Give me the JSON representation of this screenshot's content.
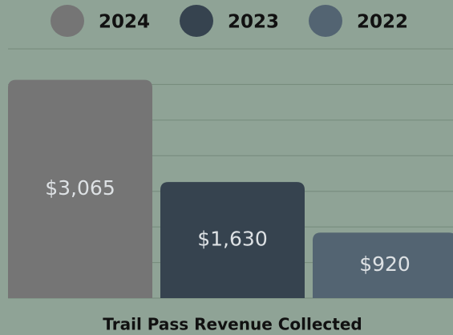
{
  "chart_data": {
    "type": "bar",
    "title": "Trail Pass Revenue Collected",
    "categories": [
      null
    ],
    "series": [
      {
        "name": "2024",
        "color": "#757575",
        "values": [
          3065
        ],
        "value_labels": [
          "$3,065"
        ]
      },
      {
        "name": "2023",
        "color": "#36434f",
        "values": [
          1630
        ],
        "value_labels": [
          "$1,630"
        ]
      },
      {
        "name": "2022",
        "color": "#536472",
        "values": [
          920
        ],
        "value_labels": [
          "$920"
        ]
      }
    ],
    "ylim": [
      0,
      3500
    ],
    "yticks": [
      0,
      500,
      1000,
      1500,
      2000,
      2500,
      3000,
      3500
    ],
    "grid": true,
    "legend": "top"
  }
}
